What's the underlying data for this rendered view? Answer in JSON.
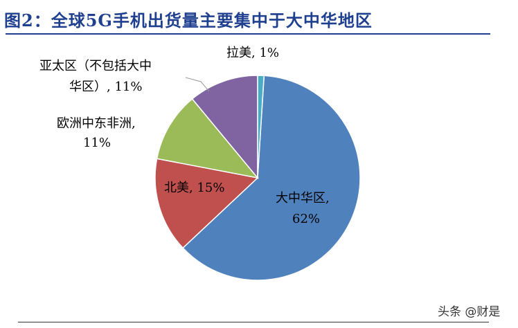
{
  "chart_data": {
    "type": "pie",
    "title": "图2：全球5G手机出货量主要集中于大中华地区",
    "slices": [
      {
        "label": "大中华区,",
        "value_label": "62%",
        "value": 62,
        "color": "#4f81bd"
      },
      {
        "label": "北美,",
        "value_label": "15%",
        "value": 15,
        "color": "#c0504d"
      },
      {
        "label": "欧洲中东非洲,",
        "value_label": "11%",
        "value": 11,
        "color": "#9bbb59"
      },
      {
        "label": "亚太区（不包括大中华区）,",
        "value_label": "11%",
        "value": 11,
        "color": "#8064a2"
      },
      {
        "label": "拉美,",
        "value_label": "1%",
        "value": 1,
        "color": "#4bacc6"
      }
    ],
    "legend": "none"
  },
  "labels": {
    "greater_china_1": "大中华区,",
    "greater_china_2": "62%",
    "north_america": "北美, 15%",
    "emea_1": "欧洲中东非洲,",
    "emea_2": "11%",
    "apac_1": "亚太区（不包括大中",
    "apac_2": "华区）, 11%",
    "latam": "拉美, 1%"
  },
  "watermark": "头条 @财是"
}
